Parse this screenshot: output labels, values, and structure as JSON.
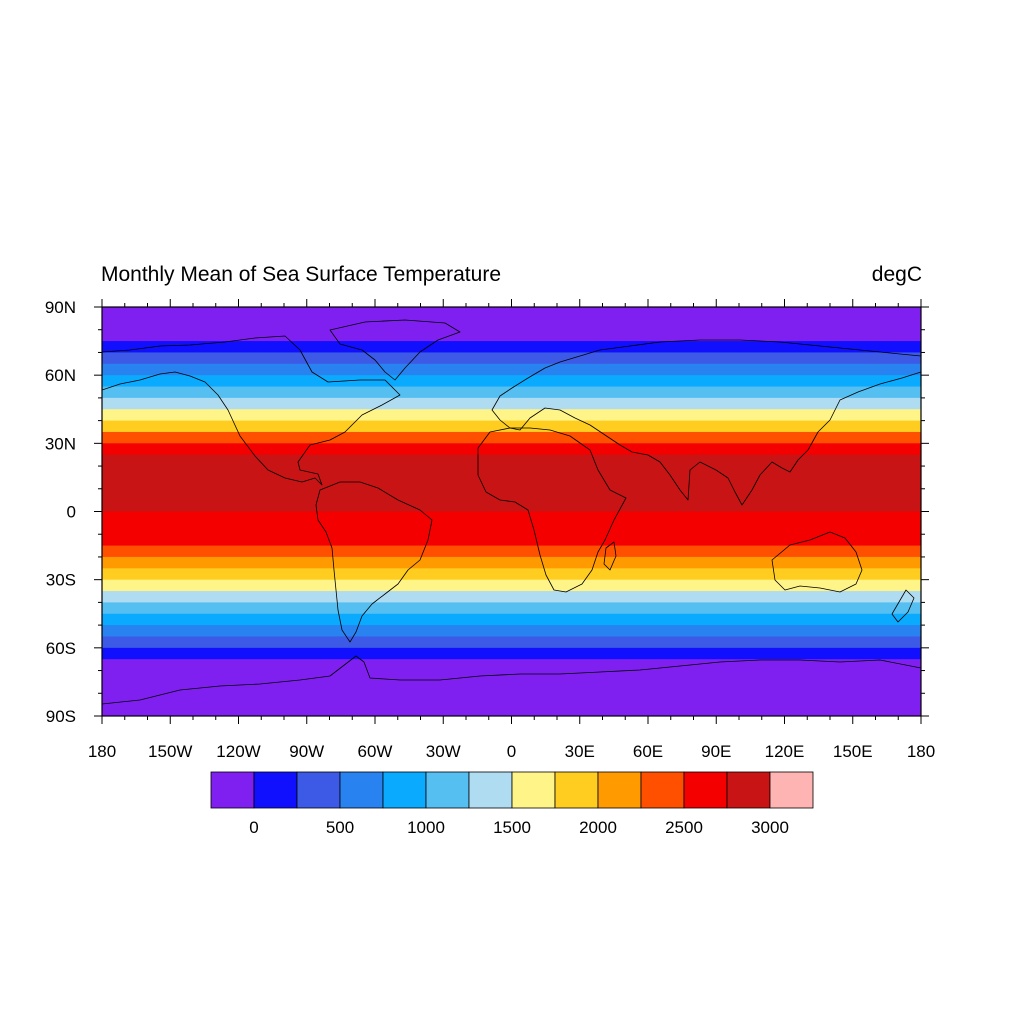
{
  "title": "Monthly Mean of Sea Surface Temperature",
  "units": "degC",
  "axes": {
    "lat_ticks": [
      {
        "value": 90,
        "label": "90N"
      },
      {
        "value": 60,
        "label": "60N"
      },
      {
        "value": 30,
        "label": "30N"
      },
      {
        "value": 0,
        "label": "0"
      },
      {
        "value": -30,
        "label": "30S"
      },
      {
        "value": -60,
        "label": "60S"
      },
      {
        "value": -90,
        "label": "90S"
      }
    ],
    "lon_ticks": [
      {
        "value": -180,
        "label": "180"
      },
      {
        "value": -150,
        "label": "150W"
      },
      {
        "value": -120,
        "label": "120W"
      },
      {
        "value": -90,
        "label": "90W"
      },
      {
        "value": -60,
        "label": "60W"
      },
      {
        "value": -30,
        "label": "30W"
      },
      {
        "value": 0,
        "label": "0"
      },
      {
        "value": 30,
        "label": "30E"
      },
      {
        "value": 60,
        "label": "60E"
      },
      {
        "value": 90,
        "label": "90E"
      },
      {
        "value": 120,
        "label": "120E"
      },
      {
        "value": 150,
        "label": "150E"
      },
      {
        "value": 180,
        "label": "180"
      }
    ],
    "xlim": [
      -180,
      180
    ],
    "ylim": [
      -90,
      90
    ]
  },
  "chart_data": {
    "type": "heatmap",
    "projection": "cylindrical equidistant",
    "title": "Monthly Mean of Sea Surface Temperature",
    "units": "degC",
    "x_ticks": [
      "180",
      "150W",
      "120W",
      "90W",
      "60W",
      "30W",
      "0",
      "30E",
      "60E",
      "90E",
      "120E",
      "150E",
      "180"
    ],
    "y_ticks": [
      "90N",
      "60N",
      "30N",
      "0",
      "30S",
      "60S",
      "90S"
    ],
    "colorbar": {
      "levels": [
        0,
        250,
        500,
        750,
        1000,
        1250,
        1500,
        1750,
        2000,
        2250,
        2500,
        2750,
        3000
      ],
      "labels": [
        "0",
        "500",
        "1000",
        "1500",
        "2000",
        "2500",
        "3000"
      ],
      "colors": [
        "#8020f0",
        "#1010ff",
        "#3c5ae6",
        "#2882f0",
        "#0aaaff",
        "#55bff2",
        "#b0dcf2",
        "#fff487",
        "#ffcc20",
        "#ff9a00",
        "#ff5000",
        "#f50000",
        "#c81414",
        "#ffb4b4"
      ]
    },
    "zonal_profile": {
      "lat": [
        90,
        85,
        80,
        75,
        70,
        65,
        60,
        55,
        50,
        45,
        40,
        35,
        30,
        25,
        20,
        15,
        10,
        5,
        0,
        -5,
        -10,
        -15,
        -20,
        -25,
        -30,
        -35,
        -40,
        -45,
        -50,
        -55,
        -60,
        -65,
        -70,
        -75,
        -80,
        -85,
        -90
      ],
      "value": [
        -150,
        -150,
        -120,
        50,
        300,
        600,
        800,
        1050,
        1250,
        1450,
        1700,
        2050,
        2450,
        2750,
        2850,
        2900,
        2850,
        2800,
        2750,
        2700,
        2650,
        2550,
        2350,
        2100,
        1800,
        1500,
        1250,
        1000,
        750,
        450,
        200,
        -150,
        -150,
        -150,
        -150,
        -150,
        -150
      ]
    }
  }
}
